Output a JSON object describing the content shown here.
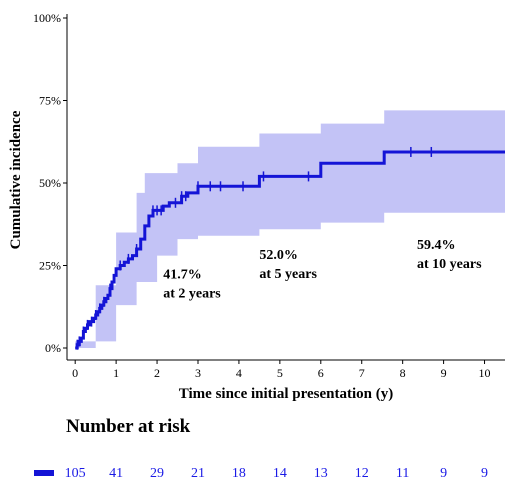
{
  "colors": {
    "line": "#1414d6",
    "band": "#b8b8f5",
    "risk_text": "#1a1ae6"
  },
  "risk_table": {
    "title": "Number at risk",
    "values": [
      "105",
      "41",
      "29",
      "21",
      "18",
      "14",
      "13",
      "12",
      "11",
      "9",
      "9"
    ]
  },
  "chart_data": {
    "type": "line",
    "xlabel": "Time since initial presentation (y)",
    "ylabel": "Cumulative incidence",
    "xlim": [
      -0.2,
      10.5
    ],
    "ylim": [
      0,
      1
    ],
    "x_ticks": [
      0,
      1,
      2,
      3,
      4,
      5,
      6,
      7,
      8,
      9,
      10
    ],
    "x_tick_labels": [
      "0",
      "1",
      "2",
      "3",
      "4",
      "5",
      "6",
      "7",
      "8",
      "9",
      "10"
    ],
    "y_ticks": [
      0,
      0.25,
      0.5,
      0.75,
      1.0
    ],
    "y_tick_labels": [
      "0%",
      "25%",
      "50%",
      "75%",
      "100%"
    ],
    "grid": false,
    "series": [
      {
        "step": [
          [
            0,
            0.0
          ],
          [
            0.05,
            0.01
          ],
          [
            0.1,
            0.02
          ],
          [
            0.15,
            0.03
          ],
          [
            0.2,
            0.05
          ],
          [
            0.25,
            0.06
          ],
          [
            0.3,
            0.07
          ],
          [
            0.35,
            0.08
          ],
          [
            0.45,
            0.09
          ],
          [
            0.5,
            0.1
          ],
          [
            0.55,
            0.11
          ],
          [
            0.6,
            0.12
          ],
          [
            0.65,
            0.13
          ],
          [
            0.7,
            0.14
          ],
          [
            0.75,
            0.15
          ],
          [
            0.8,
            0.16
          ],
          [
            0.85,
            0.18
          ],
          [
            0.9,
            0.2
          ],
          [
            0.95,
            0.22
          ],
          [
            1.0,
            0.24
          ],
          [
            1.1,
            0.25
          ],
          [
            1.2,
            0.26
          ],
          [
            1.3,
            0.27
          ],
          [
            1.4,
            0.28
          ],
          [
            1.5,
            0.3
          ],
          [
            1.6,
            0.33
          ],
          [
            1.7,
            0.37
          ],
          [
            1.8,
            0.4
          ],
          [
            1.9,
            0.417
          ],
          [
            2.15,
            0.43
          ],
          [
            2.3,
            0.44
          ],
          [
            2.6,
            0.46
          ],
          [
            2.75,
            0.47
          ],
          [
            3.0,
            0.49
          ],
          [
            4.5,
            0.52
          ],
          [
            6.0,
            0.56
          ],
          [
            7.55,
            0.594
          ],
          [
            10.5,
            0.594
          ]
        ],
        "ci_lower": [
          [
            0,
            0.0
          ],
          [
            0.5,
            0.02
          ],
          [
            1.0,
            0.13
          ],
          [
            1.5,
            0.2
          ],
          [
            2.0,
            0.28
          ],
          [
            2.5,
            0.33
          ],
          [
            3.0,
            0.34
          ],
          [
            4.5,
            0.36
          ],
          [
            6.0,
            0.38
          ],
          [
            7.55,
            0.41
          ],
          [
            10.5,
            0.41
          ]
        ],
        "ci_upper": [
          [
            0,
            0.02
          ],
          [
            0.5,
            0.19
          ],
          [
            1.0,
            0.35
          ],
          [
            1.5,
            0.47
          ],
          [
            1.7,
            0.53
          ],
          [
            2.5,
            0.56
          ],
          [
            3.0,
            0.61
          ],
          [
            4.5,
            0.65
          ],
          [
            6.0,
            0.68
          ],
          [
            7.55,
            0.72
          ],
          [
            10.5,
            0.72
          ]
        ],
        "censor_times": [
          0.05,
          0.1,
          0.2,
          0.3,
          0.4,
          0.5,
          0.6,
          0.7,
          0.85,
          1.1,
          1.3,
          1.5,
          1.9,
          2.0,
          2.1,
          2.45,
          2.6,
          2.7,
          3.0,
          3.3,
          3.55,
          4.1,
          4.6,
          5.7,
          8.2,
          8.7
        ]
      }
    ],
    "annotations": [
      {
        "line1": "41.7%",
        "line2": "at 2 years",
        "x": 2.15,
        "y": 0.21
      },
      {
        "line1": "52.0%",
        "line2": "at 5 years",
        "x": 4.5,
        "y": 0.27
      },
      {
        "line1": "59.4%",
        "line2": "at 10 years",
        "x": 8.35,
        "y": 0.3
      }
    ]
  }
}
